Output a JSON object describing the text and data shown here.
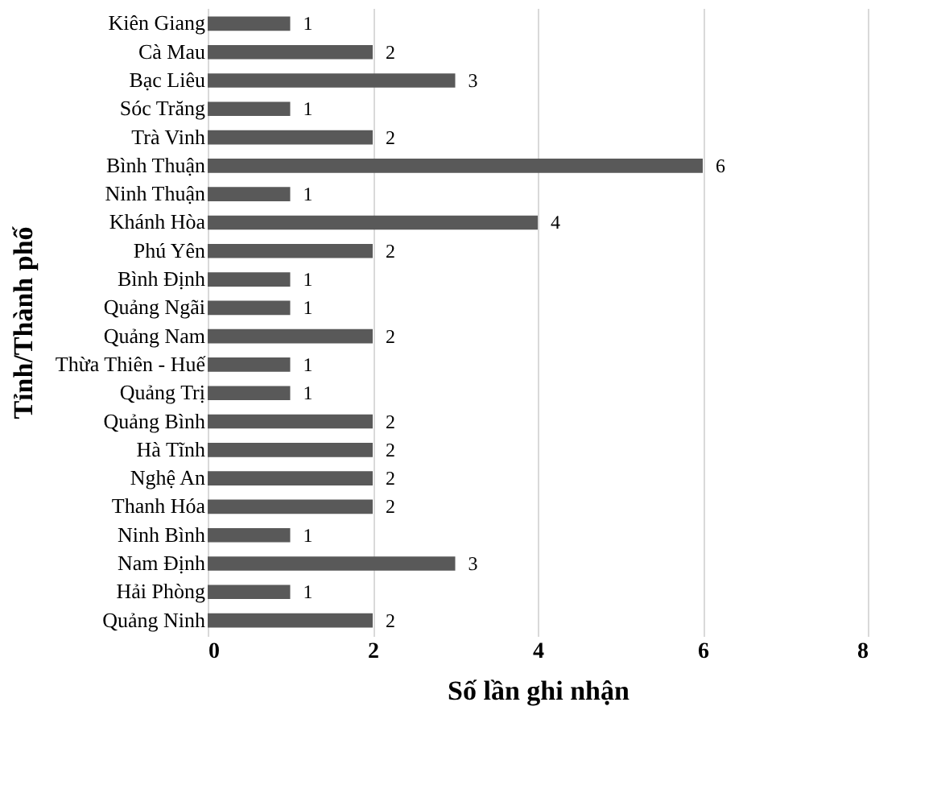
{
  "chart_data": {
    "type": "bar",
    "orientation": "horizontal",
    "xlabel": "Số lần ghi nhận",
    "ylabel": "Tỉnh/Thành phố",
    "categories": [
      "Kiên Giang",
      "Cà Mau",
      "Bạc Liêu",
      "Sóc Trăng",
      "Trà Vinh",
      "Bình Thuận",
      "Ninh Thuận",
      "Khánh Hòa",
      "Phú Yên",
      "Bình Định",
      "Quảng Ngãi",
      "Quảng Nam",
      "Thừa Thiên - Huế",
      "Quảng Trị",
      "Quảng Bình",
      "Hà Tĩnh",
      "Nghệ An",
      "Thanh Hóa",
      "Ninh Bình",
      "Nam Định",
      "Hải Phòng",
      "Quảng Ninh"
    ],
    "values": [
      1,
      2,
      3,
      1,
      2,
      6,
      1,
      4,
      2,
      1,
      1,
      2,
      1,
      1,
      2,
      2,
      2,
      2,
      1,
      3,
      1,
      2
    ],
    "color": "#595959",
    "xlim": [
      0,
      8
    ],
    "xticks": [
      0,
      2,
      4,
      6,
      8
    ],
    "grid": "x",
    "data_labels": true
  }
}
